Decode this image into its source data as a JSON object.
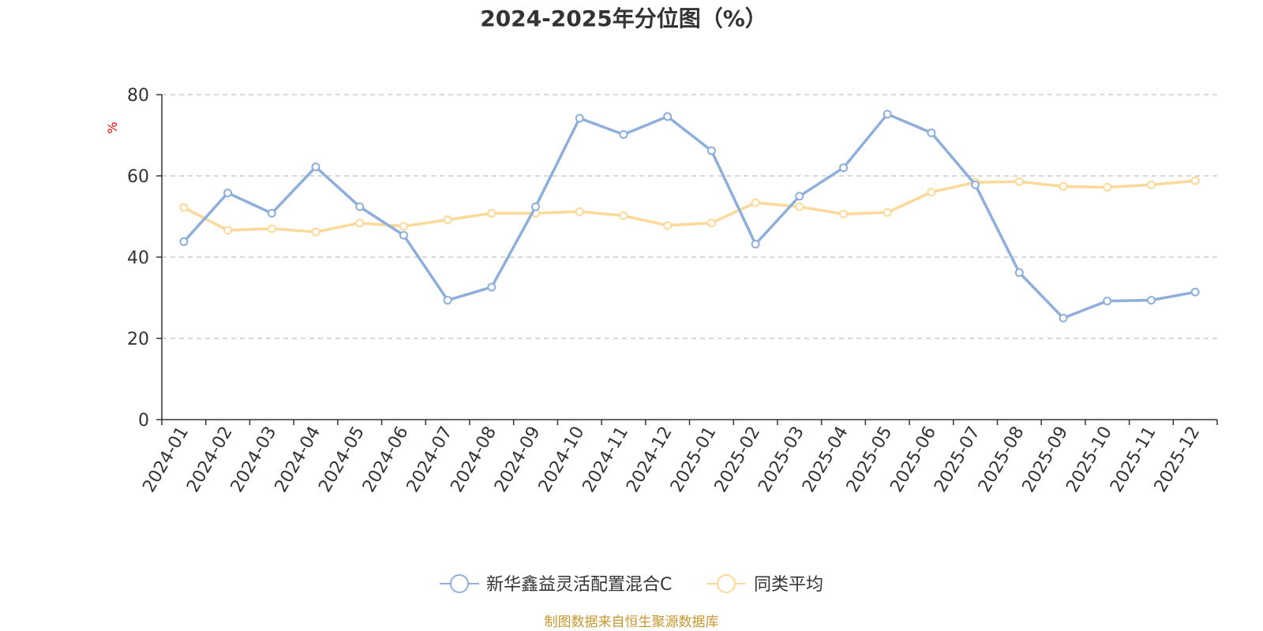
{
  "chart_data": {
    "type": "line",
    "title": "2024-2025年分位图（%）",
    "ylabel": "%",
    "xlabel": "",
    "ylim": [
      0,
      80
    ],
    "yticks": [
      0,
      20,
      40,
      60,
      80
    ],
    "grid": true,
    "legend_position": "bottom",
    "categories": [
      "2024-01",
      "2024-02",
      "2024-03",
      "2024-04",
      "2024-05",
      "2024-06",
      "2024-07",
      "2024-08",
      "2024-09",
      "2024-10",
      "2024-11",
      "2024-12",
      "2025-01",
      "2025-02",
      "2025-03",
      "2025-04",
      "2025-05",
      "2025-06",
      "2025-07",
      "2025-08",
      "2025-09",
      "2025-10",
      "2025-11",
      "2025-12"
    ],
    "series": [
      {
        "name": "新华鑫益灵活配置混合C",
        "color": "#8eaedb",
        "values": [
          43.8,
          55.8,
          50.8,
          62.2,
          52.4,
          45.4,
          29.4,
          32.6,
          52.4,
          74.2,
          70.2,
          74.6,
          66.2,
          43.2,
          55.0,
          62.0,
          75.2,
          70.6,
          57.8,
          36.2,
          25.0,
          29.2,
          29.4,
          31.4
        ]
      },
      {
        "name": "同类平均",
        "color": "#fcd998",
        "values": [
          52.2,
          46.6,
          47.0,
          46.2,
          48.4,
          47.6,
          49.2,
          50.8,
          50.8,
          51.2,
          50.2,
          47.8,
          48.4,
          53.4,
          52.4,
          50.6,
          51.0,
          56.0,
          58.4,
          58.6,
          57.4,
          57.2,
          57.8,
          58.8
        ]
      }
    ]
  },
  "source": "制图数据来自恒生聚源数据库"
}
